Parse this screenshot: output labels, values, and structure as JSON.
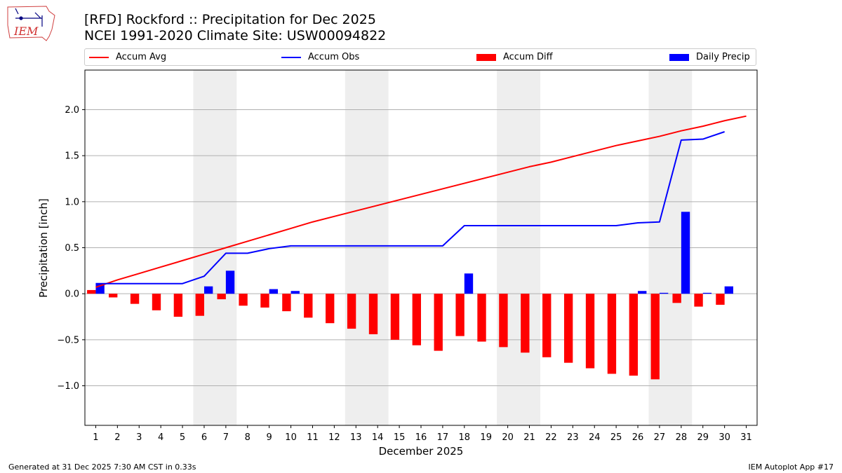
{
  "header": {
    "title_line1": "[RFD] Rockford :: Precipitation for Dec 2025",
    "title_line2": "NCEI 1991-2020 Climate Site: USW00094822",
    "logo_text": "IEM"
  },
  "legend": {
    "accum_avg": "Accum Avg",
    "accum_obs": "Accum Obs",
    "accum_diff": "Accum Diff",
    "daily_precip": "Daily Precip"
  },
  "footer": {
    "left": "Generated at 31 Dec 2025 7:30 AM CST in 0.33s",
    "right": "IEM Autoplot App #17"
  },
  "colors": {
    "avg": "#ff0000",
    "obs": "#0000ff",
    "diff": "#ff0000",
    "daily": "#0000ff",
    "weekend": "#eeeeee",
    "grid": "#b0b0b0"
  },
  "chart_data": {
    "type": "bar",
    "title": "[RFD] Rockford :: Precipitation for Dec 2025",
    "xlabel": "December 2025",
    "ylabel": "Precipitation [inch]",
    "ylim": [
      -1.43,
      2.43
    ],
    "xlim": [
      0.5,
      31.5
    ],
    "yticks": [
      -1.0,
      -0.5,
      0.0,
      0.5,
      1.0,
      1.5,
      2.0
    ],
    "ytick_labels": [
      "−1.0",
      "−0.5",
      "0.0",
      "0.5",
      "1.0",
      "1.5",
      "2.0"
    ],
    "days": [
      1,
      2,
      3,
      4,
      5,
      6,
      7,
      8,
      9,
      10,
      11,
      12,
      13,
      14,
      15,
      16,
      17,
      18,
      19,
      20,
      21,
      22,
      23,
      24,
      25,
      26,
      27,
      28,
      29,
      30,
      31
    ],
    "weekend_spans": [
      [
        5.5,
        7.5
      ],
      [
        12.5,
        14.5
      ],
      [
        19.5,
        21.5
      ],
      [
        26.5,
        28.5
      ]
    ],
    "grid": true,
    "legend_position": "top",
    "series": [
      {
        "name": "Accum Avg",
        "type": "line",
        "color": "#ff0000",
        "values": [
          0.07,
          0.15,
          0.22,
          0.29,
          0.36,
          0.43,
          0.5,
          0.57,
          0.64,
          0.71,
          0.78,
          0.84,
          0.9,
          0.96,
          1.02,
          1.08,
          1.14,
          1.2,
          1.26,
          1.32,
          1.38,
          1.43,
          1.49,
          1.55,
          1.61,
          1.66,
          1.71,
          1.77,
          1.82,
          1.88,
          1.93
        ]
      },
      {
        "name": "Accum Obs",
        "type": "line",
        "color": "#0000ff",
        "values": [
          0.11,
          0.11,
          0.11,
          0.11,
          0.11,
          0.19,
          0.44,
          0.44,
          0.49,
          0.52,
          0.52,
          0.52,
          0.52,
          0.52,
          0.52,
          0.52,
          0.52,
          0.74,
          0.74,
          0.74,
          0.74,
          0.74,
          0.74,
          0.74,
          0.74,
          0.77,
          0.78,
          1.67,
          1.68,
          1.76
        ]
      },
      {
        "name": "Accum Diff",
        "type": "bar",
        "color": "#ff0000",
        "values": [
          0.04,
          -0.04,
          -0.11,
          -0.18,
          -0.25,
          -0.24,
          -0.06,
          -0.13,
          -0.15,
          -0.19,
          -0.26,
          -0.32,
          -0.38,
          -0.44,
          -0.5,
          -0.56,
          -0.62,
          -0.46,
          -0.52,
          -0.58,
          -0.64,
          -0.69,
          -0.75,
          -0.81,
          -0.87,
          -0.89,
          -0.93,
          -0.1,
          -0.14,
          -0.12
        ]
      },
      {
        "name": "Daily Precip",
        "type": "bar",
        "color": "#0000ff",
        "values": [
          0.11,
          0.0,
          0.0,
          0.0,
          0.0,
          0.08,
          0.25,
          0.0,
          0.05,
          0.03,
          0.0,
          0.0,
          0.0,
          0.0,
          0.0,
          0.0,
          0.0,
          0.22,
          0.0,
          0.0,
          0.0,
          0.0,
          0.0,
          0.0,
          0.0,
          0.03,
          0.01,
          0.89,
          0.01,
          0.08
        ]
      }
    ]
  }
}
